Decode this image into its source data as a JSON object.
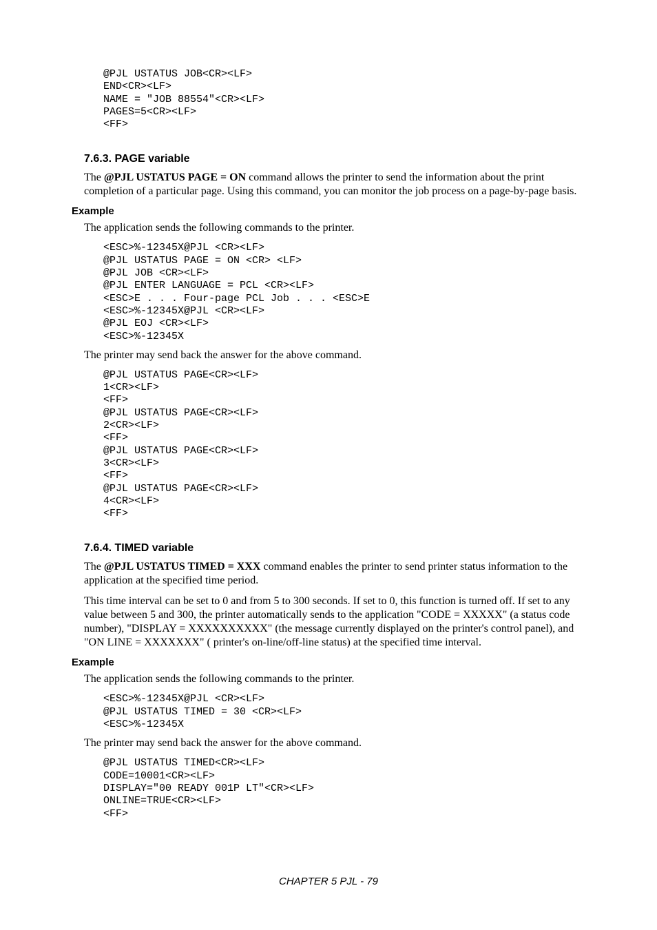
{
  "top_code": "@PJL USTATUS JOB<CR><LF>\nEND<CR><LF>\nNAME = \"JOB 88554\"<CR><LF>\nPAGES=5<CR><LF>\n<FF>",
  "section_763": {
    "heading": "7.6.3.    PAGE variable",
    "intro_pre": "The ",
    "intro_bold": "@PJL USTATUS PAGE = ON",
    "intro_post": " command allows the printer to send the information about the print completion of a particular page.  Using this command,  you can monitor the job process on a page-by-page basis.",
    "example_label": "Example",
    "example_intro": "The application sends the following commands to the printer.",
    "example_code": "<ESC>%-12345X@PJL <CR><LF>\n@PJL USTATUS PAGE = ON <CR> <LF>\n@PJL JOB <CR><LF>\n@PJL ENTER LANGUAGE = PCL <CR><LF>\n<ESC>E . . . Four-page PCL Job . . . <ESC>E\n<ESC>%-12345X@PJL <CR><LF>\n@PJL EOJ <CR><LF>\n<ESC>%-12345X",
    "response_intro": "The printer may send back the answer for the above command.",
    "response_code": "@PJL USTATUS PAGE<CR><LF>\n1<CR><LF>\n<FF>\n@PJL USTATUS PAGE<CR><LF>\n2<CR><LF>\n<FF>\n@PJL USTATUS PAGE<CR><LF>\n3<CR><LF>\n<FF>\n@PJL USTATUS PAGE<CR><LF>\n4<CR><LF>\n<FF>"
  },
  "section_764": {
    "heading": "7.6.4.    TIMED variable",
    "intro_pre": "The ",
    "intro_bold": "@PJL USTATUS TIMED = XXX",
    "intro_post": " command enables the printer to send printer status information to the application at the specified time period.",
    "para2": "This time interval can be set to 0 and from 5 to 300 seconds.  If set to 0,  this function is turned off.  If set to any value between 5 and 300,  the printer automatically sends to the application \"CODE = XXXXX\" (a status code number), \"DISPLAY = XXXXXXXXXX\" (the message currently displayed on the printer's control panel), and \"ON LINE = XXXXXXX\" ( printer's on-line/off-line status) at the specified time interval.",
    "example_label": "Example",
    "example_intro": "The application sends the following commands to the printer.",
    "example_code": "<ESC>%-12345X@PJL <CR><LF>\n@PJL USTATUS TIMED = 30 <CR><LF>\n<ESC>%-12345X",
    "response_intro": "The printer may send back the answer for the above command.",
    "response_code": "@PJL USTATUS TIMED<CR><LF>\nCODE=10001<CR><LF>\nDISPLAY=\"00 READY 001P LT\"<CR><LF>\nONLINE=TRUE<CR><LF>\n<FF>"
  },
  "footer": "CHAPTER 5 PJL - 79"
}
